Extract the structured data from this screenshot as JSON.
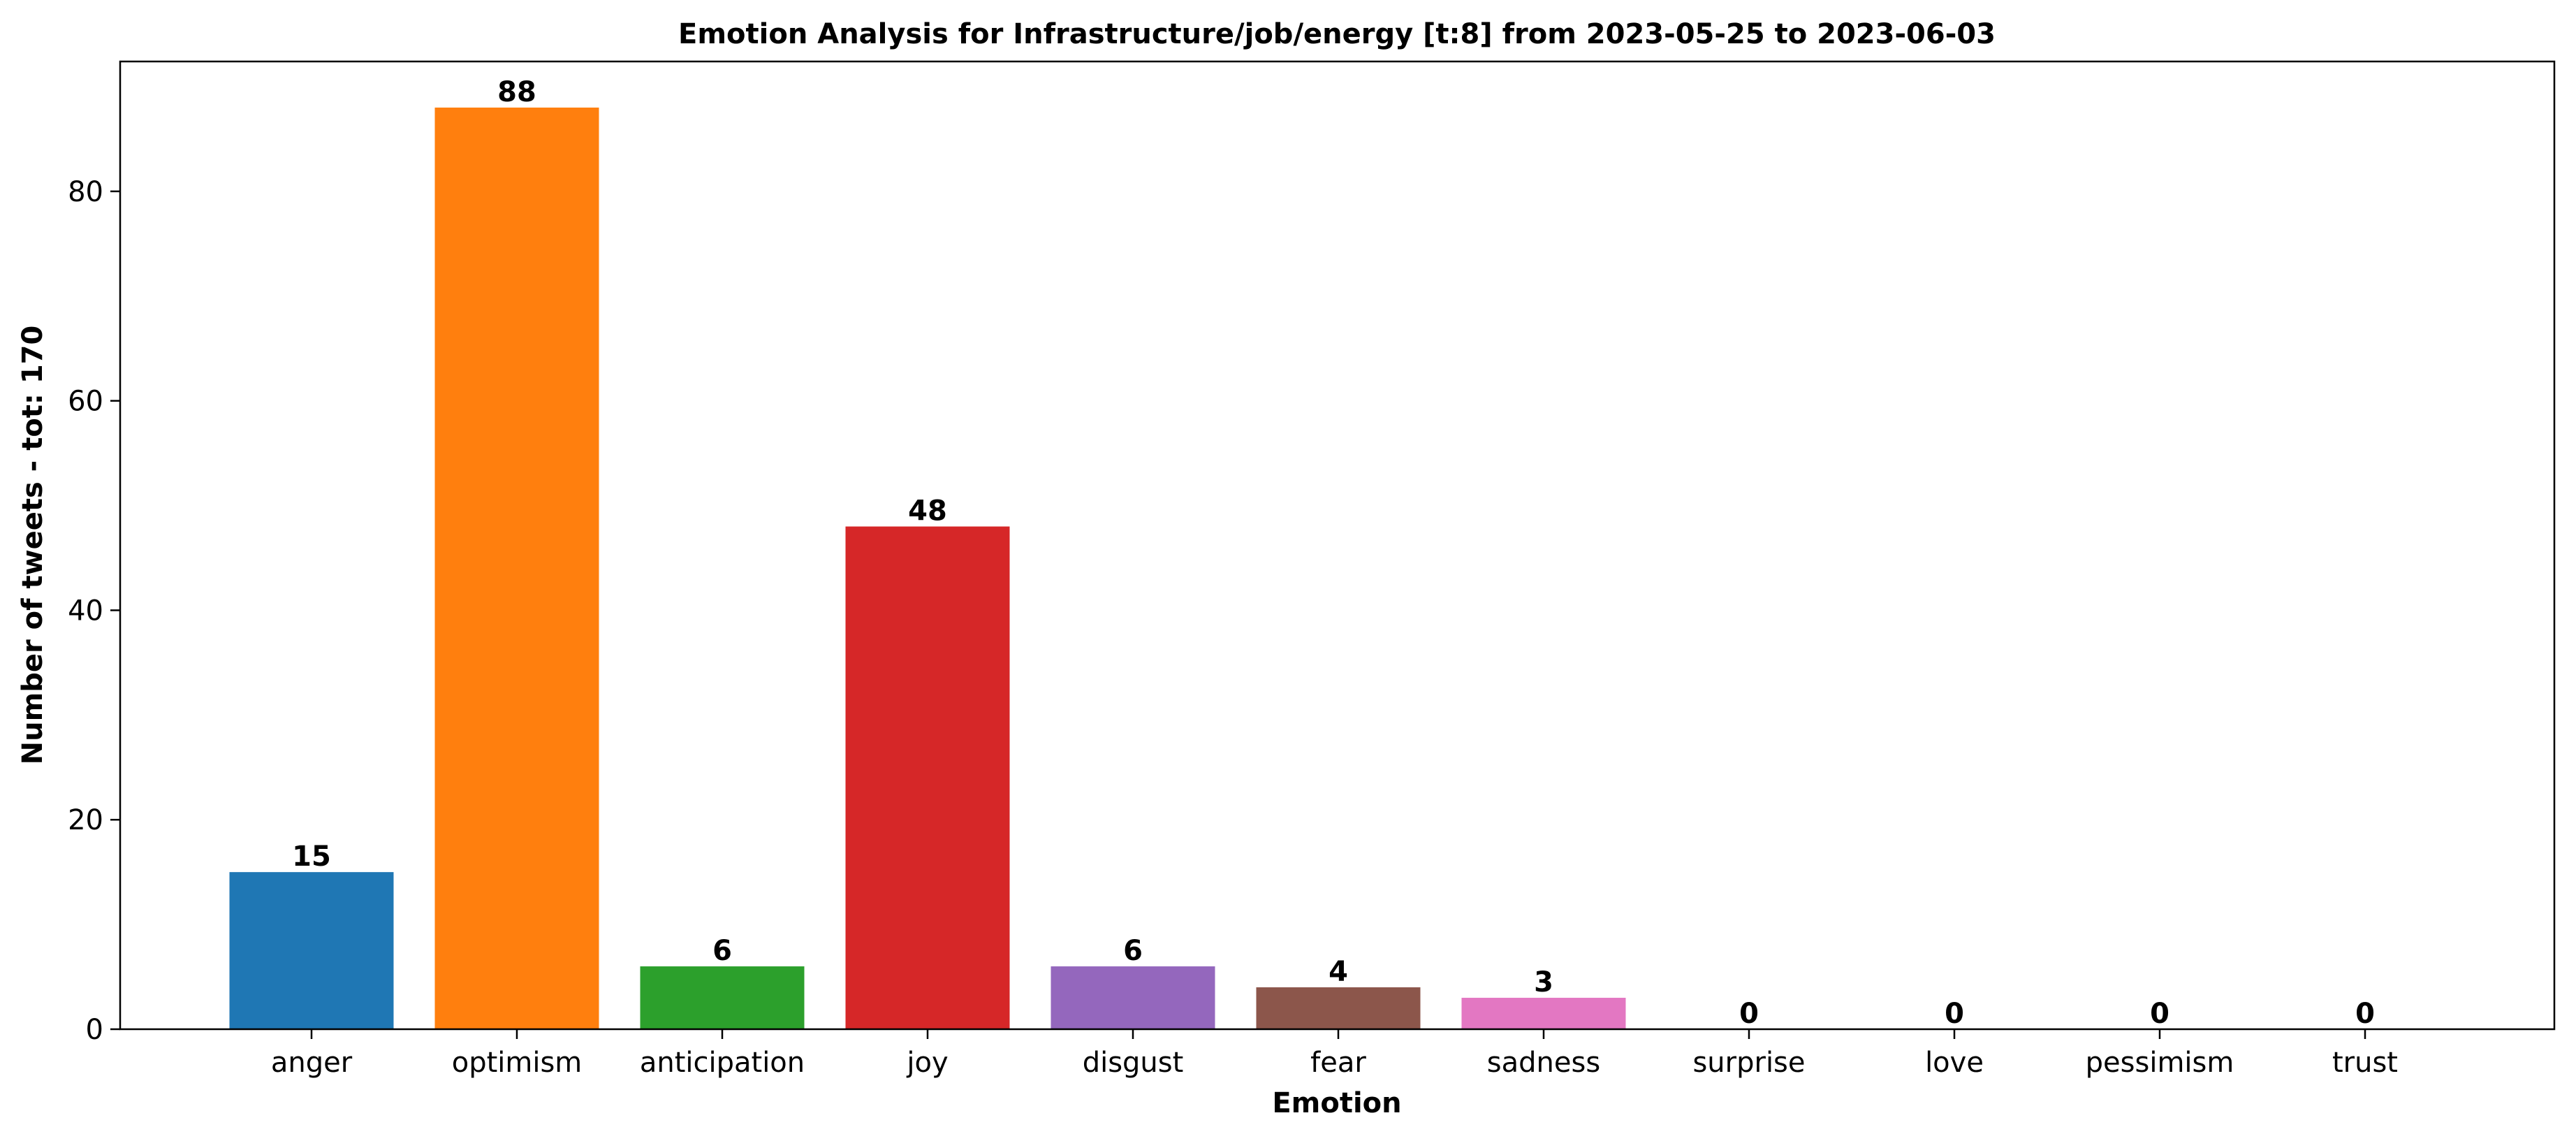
{
  "chart_data": {
    "type": "bar",
    "title": "Emotion Analysis for Infrastructure/job/energy [t:8] from 2023-05-25 to 2023-06-03",
    "xlabel": "Emotion",
    "ylabel": "Number of tweets - tot: 170",
    "categories": [
      "anger",
      "optimism",
      "anticipation",
      "joy",
      "disgust",
      "fear",
      "sadness",
      "surprise",
      "love",
      "pessimism",
      "trust"
    ],
    "values": [
      15,
      88,
      6,
      48,
      6,
      4,
      3,
      0,
      0,
      0,
      0
    ],
    "colors": [
      "#1f77b4",
      "#ff7f0e",
      "#2ca02c",
      "#d62728",
      "#9467bd",
      "#8c564b",
      "#e377c2",
      "#7f7f7f",
      "#bcbd22",
      "#17becf",
      "#1f77b4"
    ],
    "ylim": [
      0,
      92.4
    ],
    "yticks": [
      0,
      20,
      40,
      60,
      80
    ],
    "grid": false,
    "legend": false
  }
}
